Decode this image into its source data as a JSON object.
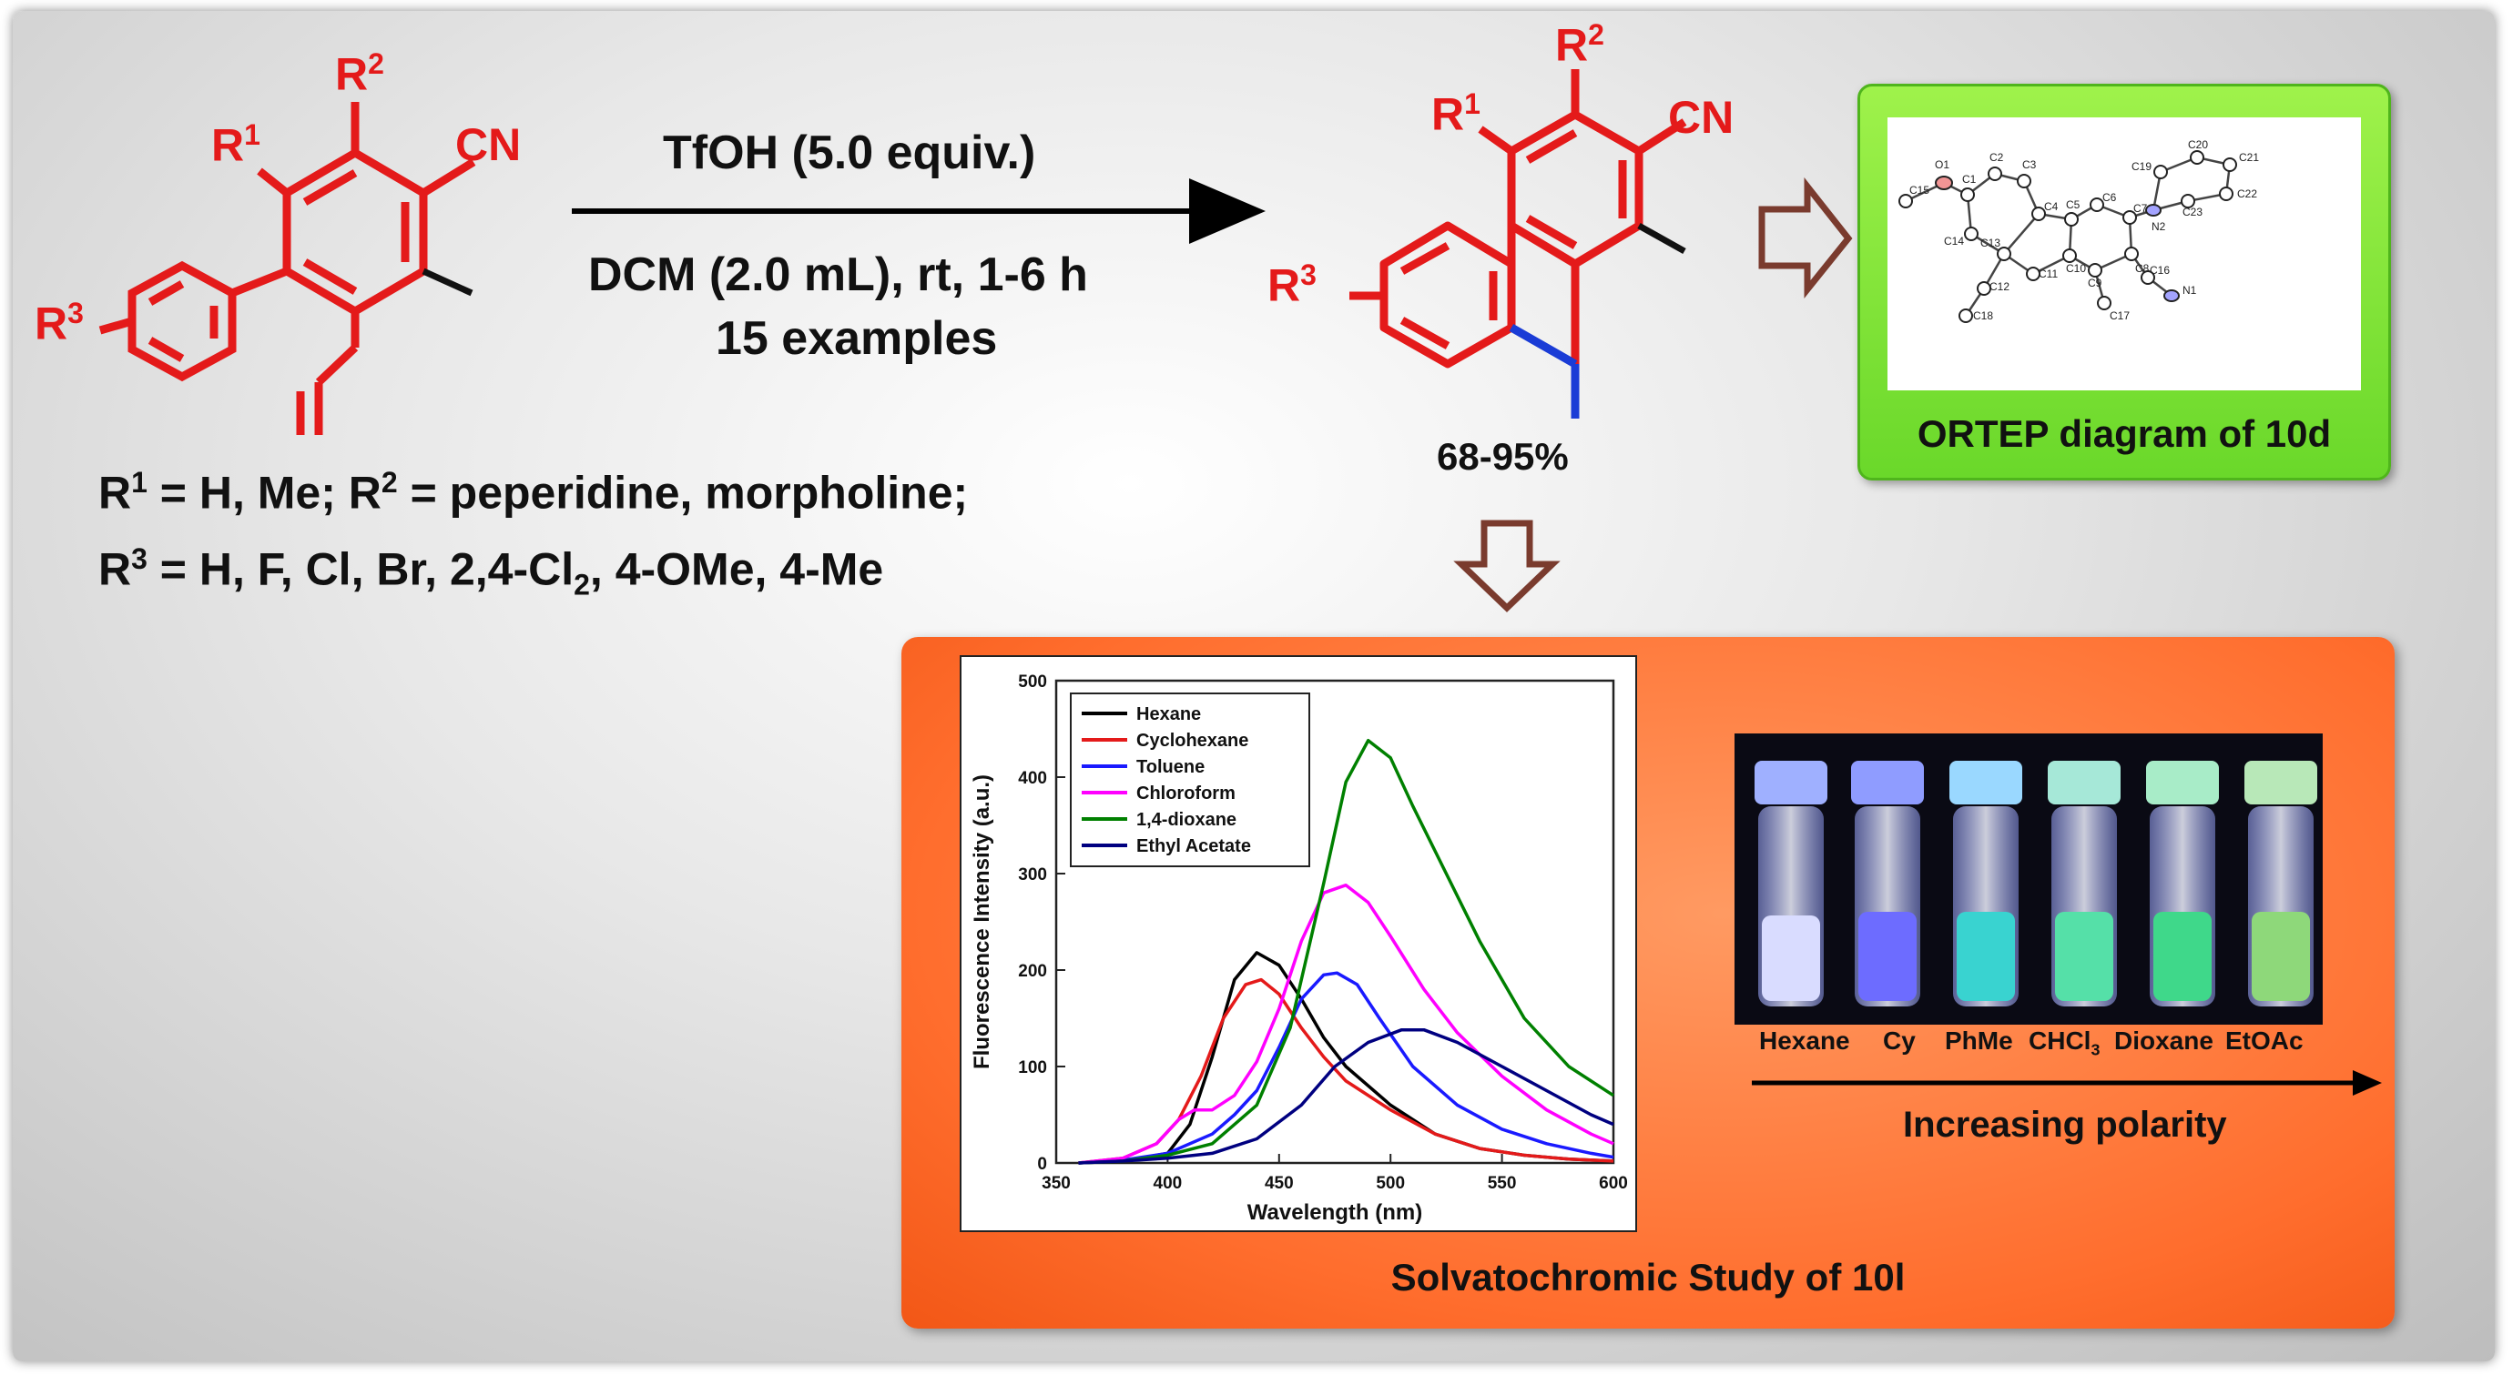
{
  "reaction": {
    "reagent_line1": "TfOH (5.0 equiv.)",
    "conditions_line1": "DCM (2.0 mL), rt, 1-6 h",
    "conditions_line2": "15 examples",
    "yield": "68-95%"
  },
  "substituents": {
    "line1_a": "R",
    "line1_a_sup": "1",
    "line1_b": " = H, Me; R",
    "line1_b_sup": "2",
    "line1_c": " = peperidine, morpholine;",
    "line2_a": "R",
    "line2_a_sup": "3",
    "line2_b": " = H, F, Cl, Br, 2,4-Cl",
    "line2_b_sub": "2",
    "line2_c": ", 4-OMe, 4-Me"
  },
  "structure_labels": {
    "r": "R",
    "one": "1",
    "two": "2",
    "three": "3",
    "cn": "CN"
  },
  "ortep": {
    "caption": "ORTEP diagram of 10d",
    "atoms": [
      "O1",
      "C1",
      "C2",
      "C3",
      "C15",
      "C14",
      "C4",
      "C5",
      "C6",
      "C7",
      "C19",
      "C20",
      "C21",
      "N2",
      "C23",
      "C22",
      "C13",
      "C12",
      "C11",
      "C10",
      "C9",
      "C8",
      "C16",
      "N1",
      "C18",
      "C17"
    ]
  },
  "colors": {
    "red": "#e41a1a",
    "blue": "#1a3cd6",
    "arrow_brown": "#7a3b2e",
    "green_box": "#6ad82a",
    "orange_box": "#ff6d2d"
  },
  "chart_data": {
    "type": "line",
    "xlabel": "Wavelength (nm)",
    "ylabel": "Fluorescence Intensity (a.u.)",
    "xlim": [
      350,
      600
    ],
    "ylim": [
      0,
      500
    ],
    "xticks": [
      350,
      400,
      450,
      500,
      550,
      600
    ],
    "yticks": [
      0,
      100,
      200,
      300,
      400,
      500
    ],
    "legend_position": "top-left",
    "series": [
      {
        "name": "Hexane",
        "color": "#000000",
        "x": [
          360,
          380,
          400,
          410,
          420,
          430,
          440,
          450,
          460,
          470,
          480,
          500,
          520,
          540,
          560,
          580,
          600
        ],
        "y": [
          0,
          2,
          10,
          40,
          110,
          190,
          218,
          205,
          170,
          130,
          100,
          60,
          30,
          15,
          8,
          4,
          2
        ]
      },
      {
        "name": "Cyclohexane",
        "color": "#e41a1a",
        "x": [
          360,
          380,
          395,
          405,
          415,
          425,
          435,
          442,
          450,
          460,
          470,
          480,
          500,
          520,
          540,
          560,
          580,
          600
        ],
        "y": [
          0,
          5,
          20,
          45,
          90,
          150,
          185,
          190,
          175,
          140,
          110,
          85,
          55,
          30,
          15,
          8,
          4,
          2
        ]
      },
      {
        "name": "Toluene",
        "color": "#1a1aff",
        "x": [
          360,
          380,
          400,
          420,
          430,
          440,
          450,
          460,
          470,
          476,
          485,
          495,
          510,
          530,
          550,
          570,
          590,
          600
        ],
        "y": [
          0,
          3,
          10,
          30,
          50,
          75,
          120,
          170,
          195,
          197,
          185,
          150,
          100,
          60,
          35,
          20,
          10,
          6
        ]
      },
      {
        "name": "Chloroform",
        "color": "#ff00ff",
        "x": [
          360,
          380,
          395,
          405,
          412,
          420,
          430,
          440,
          450,
          460,
          470,
          480,
          490,
          500,
          515,
          530,
          550,
          570,
          590,
          600
        ],
        "y": [
          0,
          5,
          20,
          45,
          55,
          55,
          70,
          105,
          160,
          230,
          280,
          288,
          270,
          235,
          180,
          135,
          90,
          55,
          30,
          20
        ]
      },
      {
        "name": "1,4-dioxane",
        "color": "#008000",
        "x": [
          360,
          380,
          400,
          420,
          440,
          455,
          470,
          480,
          490,
          500,
          510,
          525,
          540,
          560,
          580,
          600
        ],
        "y": [
          0,
          2,
          8,
          20,
          60,
          140,
          290,
          395,
          438,
          420,
          370,
          300,
          230,
          150,
          100,
          70
        ]
      },
      {
        "name": "Ethyl Acetate",
        "color": "#000080",
        "x": [
          360,
          380,
          400,
          420,
          440,
          460,
          475,
          490,
          505,
          515,
          530,
          550,
          570,
          590,
          600
        ],
        "y": [
          0,
          2,
          5,
          10,
          25,
          60,
          100,
          125,
          138,
          138,
          125,
          100,
          75,
          50,
          40
        ]
      }
    ]
  },
  "photo": {
    "vial_labels": [
      "Hexane",
      "Cy",
      "PhMe",
      "CHCl",
      "Dioxane",
      "EtOAc"
    ],
    "chcl_sub": "3",
    "arrow_caption": "Increasing polarity"
  },
  "study_caption": "Solvatochromic Study of 10l"
}
